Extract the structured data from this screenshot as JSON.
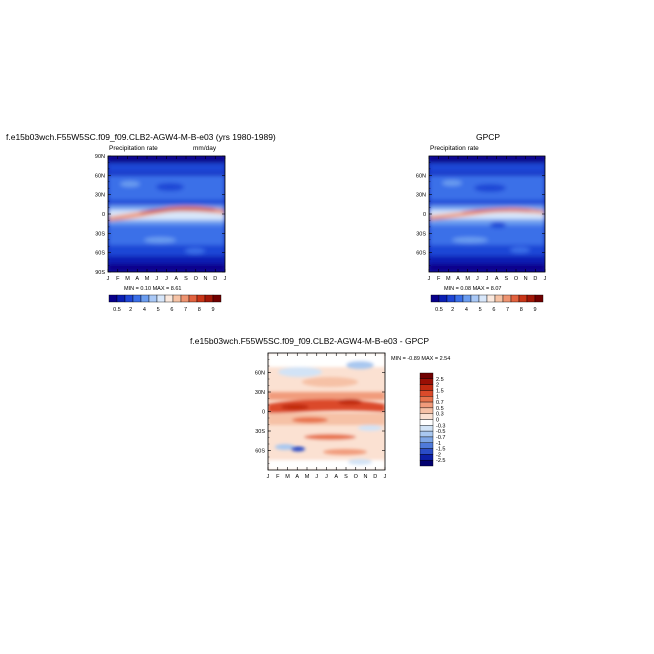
{
  "panels": {
    "model": {
      "title": "f.e15b03wch.F55W5SC.f09_f09.CLB2-AGW4-M-B-e03 (yrs 1980-1989)",
      "subtitle_left": "Precipitation rate",
      "subtitle_right": "mm/day",
      "stats": "MIN =   0.10 MAX =   8.61"
    },
    "obs": {
      "title": "GPCP",
      "subtitle_left": "Precipitation rate",
      "stats": "MIN =   0.08 MAX =   8.07"
    },
    "diff": {
      "title": "f.e15b03wch.F55W5SC.f09_f09.CLB2-AGW4-M-B-e03 - GPCP",
      "stats": "MIN =  -0.89 MAX =   2.54"
    }
  },
  "chart_data": [
    {
      "type": "heatmap",
      "title": "f.e15b03wch.F55W5SC.f09_f09.CLB2-AGW4-M-B-e03 (yrs 1980-1989)",
      "subtitle": "Precipitation rate",
      "units": "mm/day",
      "x_tick_labels": [
        "J",
        "F",
        "M",
        "A",
        "M",
        "J",
        "J",
        "A",
        "S",
        "O",
        "N",
        "D",
        "J"
      ],
      "y_tick_labels": [
        "90N",
        "60N",
        "30N",
        "0",
        "30S",
        "60S",
        "90S"
      ],
      "ylim": [
        -90,
        90
      ],
      "colorbar_labels": [
        "0.5",
        "2",
        "4",
        "5",
        "6",
        "7",
        "8",
        "9"
      ],
      "min": 0.1,
      "max": 8.61
    },
    {
      "type": "heatmap",
      "title": "GPCP",
      "subtitle": "Precipitation rate",
      "x_tick_labels": [
        "J",
        "F",
        "M",
        "A",
        "M",
        "J",
        "J",
        "A",
        "S",
        "O",
        "N",
        "D",
        "J"
      ],
      "y_tick_labels": [
        "60N",
        "30N",
        "0",
        "30S",
        "60S"
      ],
      "ylim": [
        -90,
        90
      ],
      "colorbar_labels": [
        "0.5",
        "2",
        "4",
        "5",
        "6",
        "7",
        "8",
        "9"
      ],
      "min": 0.08,
      "max": 8.07
    },
    {
      "type": "heatmap",
      "title": "f.e15b03wch.F55W5SC.f09_f09.CLB2-AGW4-M-B-e03 - GPCP",
      "x_tick_labels": [
        "J",
        "F",
        "M",
        "A",
        "M",
        "J",
        "J",
        "A",
        "S",
        "O",
        "N",
        "D",
        "J"
      ],
      "y_tick_labels": [
        "60N",
        "30N",
        "0",
        "30S",
        "60S"
      ],
      "ylim": [
        -90,
        90
      ],
      "colorbar_labels": [
        "2.5",
        "2",
        "1.5",
        "1",
        "0.7",
        "0.5",
        "0.3",
        "0",
        "-0.3",
        "-0.5",
        "-0.7",
        "-1",
        "-1.5",
        "-2",
        "-2.5"
      ],
      "min": -0.89,
      "max": 2.54
    }
  ],
  "colors": {
    "precip_scale": [
      "#08008a",
      "#0a1fb4",
      "#1f46d6",
      "#3a6fe8",
      "#6b9df0",
      "#a9c8f6",
      "#d8e7fa",
      "#fbe9de",
      "#f6c3a6",
      "#ee9471",
      "#e2623f",
      "#c93517",
      "#a21707",
      "#700000"
    ],
    "diff_scale": [
      "#700000",
      "#9a0f04",
      "#c12a10",
      "#db4a2a",
      "#e8734d",
      "#f19b7b",
      "#f6c1a6",
      "#fbe1d2",
      "#ffffff",
      "#d2e3f6",
      "#a9c8f0",
      "#7ea6e6",
      "#4f7ada",
      "#2a4cc6",
      "#0d1fa6",
      "#020070"
    ]
  }
}
